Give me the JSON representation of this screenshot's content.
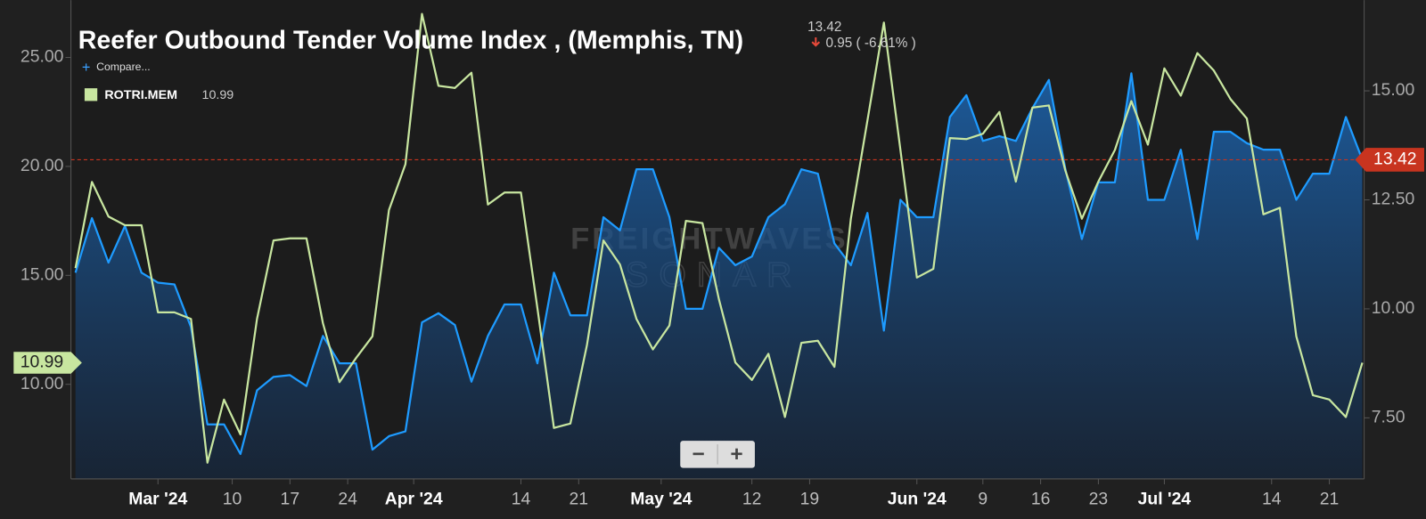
{
  "chart_data": {
    "type": "line",
    "title": "Reefer Outbound Tender Volume Index , (Memphis, TN)",
    "last_value": 13.42,
    "change": "0.95 ( -6.61% )",
    "compare": "Compare...",
    "watermark": [
      "FREIGHTWAVES",
      "SONAR"
    ],
    "zoom_controls": [
      "−",
      "+"
    ],
    "x": [
      "2024-02-20",
      "2024-02-22",
      "2024-02-24",
      "2024-02-26",
      "2024-02-28",
      "2024-03-01",
      "2024-03-03",
      "2024-03-05",
      "2024-03-07",
      "2024-03-09",
      "2024-03-11",
      "2024-03-13",
      "2024-03-15",
      "2024-03-17",
      "2024-03-19",
      "2024-03-21",
      "2024-03-23",
      "2024-03-25",
      "2024-03-27",
      "2024-03-29",
      "2024-03-31",
      "2024-04-02",
      "2024-04-04",
      "2024-04-06",
      "2024-04-08",
      "2024-04-10",
      "2024-04-12",
      "2024-04-14",
      "2024-04-16",
      "2024-04-18",
      "2024-04-20",
      "2024-04-22",
      "2024-04-24",
      "2024-04-26",
      "2024-04-28",
      "2024-04-30",
      "2024-05-02",
      "2024-05-04",
      "2024-05-06",
      "2024-05-08",
      "2024-05-10",
      "2024-05-12",
      "2024-05-14",
      "2024-05-16",
      "2024-05-18",
      "2024-05-20",
      "2024-05-22",
      "2024-05-24",
      "2024-05-26",
      "2024-05-28",
      "2024-05-30",
      "2024-06-01",
      "2024-06-03",
      "2024-06-05",
      "2024-06-07",
      "2024-06-09",
      "2024-06-11",
      "2024-06-13",
      "2024-06-15",
      "2024-06-17",
      "2024-06-19",
      "2024-06-21",
      "2024-06-23",
      "2024-06-25",
      "2024-06-27",
      "2024-06-29",
      "2024-07-01",
      "2024-07-03",
      "2024-07-05",
      "2024-07-07",
      "2024-07-09",
      "2024-07-11",
      "2024-07-13",
      "2024-07-15",
      "2024-07-17",
      "2024-07-19",
      "2024-07-21",
      "2024-07-23",
      "2024-07-25"
    ],
    "series": [
      {
        "color": "#1e9bff",
        "axis": "y2",
        "area": true,
        "values": [
          10.83,
          12.08,
          11.06,
          11.9,
          10.83,
          10.6,
          10.56,
          9.58,
          7.35,
          7.35,
          6.67,
          8.13,
          8.44,
          8.48,
          8.23,
          9.38,
          8.75,
          8.75,
          6.77,
          7.08,
          7.19,
          9.69,
          9.9,
          9.63,
          8.33,
          9.38,
          10.1,
          10.1,
          8.75,
          10.83,
          9.85,
          9.85,
          12.1,
          11.8,
          13.2,
          13.2,
          12.1,
          10.0,
          10.0,
          11.4,
          11.0,
          11.2,
          12.1,
          12.4,
          13.2,
          13.1,
          11.5,
          11.0,
          12.2,
          9.5,
          12.5,
          12.1,
          12.1,
          14.4,
          14.9,
          13.85,
          13.96,
          13.85,
          14.6,
          15.25,
          13.2,
          11.6,
          12.9,
          12.9,
          15.4,
          12.5,
          12.5,
          13.65,
          11.6,
          14.06,
          14.06,
          13.8,
          13.65,
          13.65,
          12.5,
          13.1,
          13.1,
          14.4,
          13.42
        ]
      },
      {
        "name": "ROTRI.MEM",
        "color": "#c8e6a0",
        "axis": "y",
        "values": [
          15.33,
          19.29,
          17.7,
          17.3,
          17.3,
          13.3,
          13.3,
          13.0,
          6.4,
          9.3,
          7.7,
          13.0,
          16.6,
          16.7,
          16.7,
          12.8,
          10.1,
          11.2,
          12.2,
          18.0,
          20.1,
          27.0,
          23.7,
          23.6,
          24.3,
          18.25,
          18.8,
          18.8,
          13.5,
          8.0,
          8.2,
          11.8,
          16.6,
          15.5,
          13.0,
          11.6,
          12.7,
          17.5,
          17.4,
          13.9,
          11.0,
          10.2,
          11.4,
          8.5,
          11.9,
          12.0,
          10.8,
          17.6,
          22.1,
          26.6,
          20.75,
          14.9,
          15.3,
          21.3,
          21.25,
          21.5,
          22.5,
          19.3,
          22.7,
          22.8,
          19.8,
          17.6,
          19.3,
          20.75,
          23.0,
          21.0,
          24.5,
          23.25,
          25.2,
          24.4,
          23.1,
          22.2,
          17.8,
          18.1,
          12.2,
          9.5,
          9.3,
          8.5,
          10.99
        ]
      }
    ],
    "xlim": [
      "2024-02-20",
      "2024-07-25"
    ],
    "xticks": [
      {
        "value": "2024-03-01",
        "label": "Mar '24"
      },
      {
        "value": "2024-03-10",
        "label": "10"
      },
      {
        "value": "2024-03-17",
        "label": "17"
      },
      {
        "value": "2024-03-24",
        "label": "24"
      },
      {
        "value": "2024-04-01",
        "label": "Apr '24"
      },
      {
        "value": "2024-04-14",
        "label": "14"
      },
      {
        "value": "2024-04-21",
        "label": "21"
      },
      {
        "value": "2024-05-01",
        "label": "May '24"
      },
      {
        "value": "2024-05-12",
        "label": "12"
      },
      {
        "value": "2024-05-19",
        "label": "19"
      },
      {
        "value": "2024-06-01",
        "label": "Jun '24"
      },
      {
        "value": "2024-06-09",
        "label": "9"
      },
      {
        "value": "2024-06-16",
        "label": "16"
      },
      {
        "value": "2024-06-23",
        "label": "23"
      },
      {
        "value": "2024-07-01",
        "label": "Jul '24"
      },
      {
        "value": "2024-07-14",
        "label": "14"
      },
      {
        "value": "2024-07-21",
        "label": "21"
      }
    ],
    "ylim": [
      5.66,
      27.63
    ],
    "yticks": [
      {
        "value": 10,
        "label": "10.00"
      },
      {
        "value": 15,
        "label": "15.00"
      },
      {
        "value": 20,
        "label": "20.00"
      },
      {
        "value": 25,
        "label": "25.00"
      }
    ],
    "y2lim": [
      6.1,
      17.08
    ],
    "y2ticks": [
      {
        "value": 7.5,
        "label": "7.50"
      },
      {
        "value": 10,
        "label": "10.00"
      },
      {
        "value": 12.5,
        "label": "12.50"
      },
      {
        "value": 15,
        "label": "15.00"
      }
    ]
  }
}
